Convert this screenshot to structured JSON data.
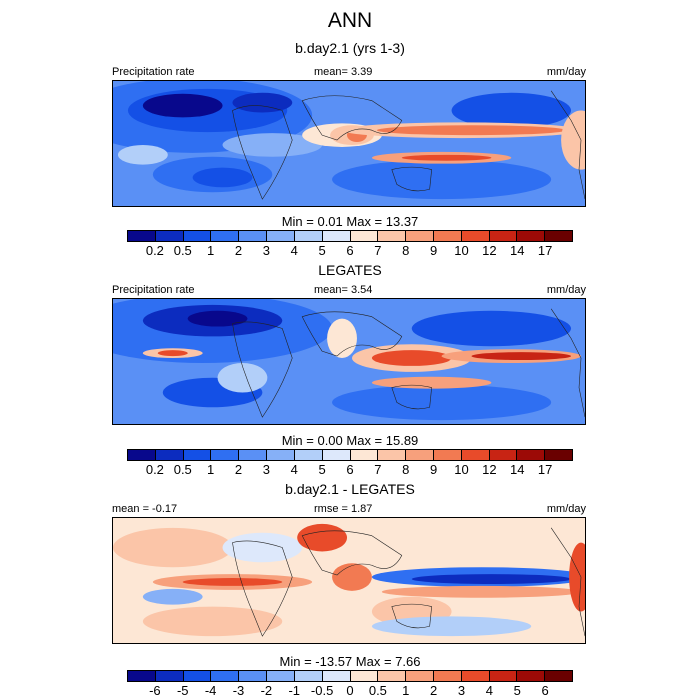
{
  "figure": {
    "title": "ANN"
  },
  "panels": [
    {
      "title": "b.day2.1 (yrs 1-3)",
      "left_label": "Precipitation rate",
      "center_label": "mean=   3.39",
      "right_label": "mm/day",
      "minmax": "Min =   0.01 Max =  13.37",
      "colorbar": {
        "ticks": [
          "0.2",
          "0.5",
          "1",
          "2",
          "3",
          "4",
          "5",
          "6",
          "7",
          "8",
          "9",
          "10",
          "12",
          "14",
          "17"
        ],
        "colors": [
          "#08088c",
          "#0c2cbf",
          "#1450e6",
          "#2f6ff2",
          "#5a90f5",
          "#86b0f7",
          "#b2cff9",
          "#dde8fb",
          "#fde7d5",
          "#fbc5a8",
          "#f7a07c",
          "#f27a52",
          "#e84b2a",
          "#c82414",
          "#9c0a06",
          "#6a0000"
        ]
      }
    },
    {
      "title": "LEGATES",
      "left_label": "Precipitation rate",
      "center_label": "mean=   3.54",
      "right_label": "mm/day",
      "minmax": "Min =   0.00 Max =  15.89",
      "colorbar": {
        "ticks": [
          "0.2",
          "0.5",
          "1",
          "2",
          "3",
          "4",
          "5",
          "6",
          "7",
          "8",
          "9",
          "10",
          "12",
          "14",
          "17"
        ],
        "colors": [
          "#08088c",
          "#0c2cbf",
          "#1450e6",
          "#2f6ff2",
          "#5a90f5",
          "#86b0f7",
          "#b2cff9",
          "#dde8fb",
          "#fde7d5",
          "#fbc5a8",
          "#f7a07c",
          "#f27a52",
          "#e84b2a",
          "#c82414",
          "#9c0a06",
          "#6a0000"
        ]
      }
    },
    {
      "title": "b.day2.1 - LEGATES",
      "left_label": "mean =  -0.17",
      "center_label": "rmse =   1.87",
      "right_label": "mm/day",
      "minmax": "Min = -13.57 Max =   7.66",
      "colorbar": {
        "ticks": [
          "-6",
          "-5",
          "-4",
          "-3",
          "-2",
          "-1",
          "-0.5",
          "0",
          "0.5",
          "1",
          "2",
          "3",
          "4",
          "5",
          "6"
        ],
        "colors": [
          "#08088c",
          "#0c2cbf",
          "#1450e6",
          "#2f6ff2",
          "#5a90f5",
          "#86b0f7",
          "#b2cff9",
          "#dde8fb",
          "#fde7d5",
          "#fbc5a8",
          "#f7a07c",
          "#f27a52",
          "#e84b2a",
          "#c82414",
          "#9c0a06",
          "#6a0000"
        ]
      }
    }
  ]
}
